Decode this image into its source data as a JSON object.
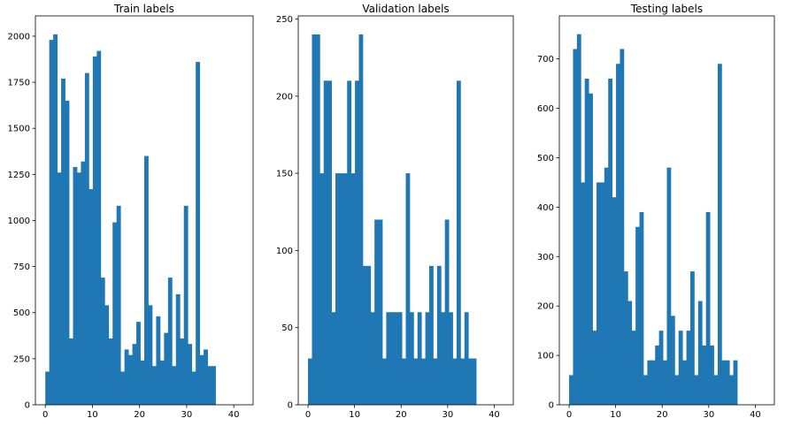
{
  "chart_data": [
    {
      "type": "bar",
      "title": "Train labels",
      "xlabel": "",
      "ylabel": "",
      "xlim": [
        -2.1,
        44.1
      ],
      "ylim": [
        0,
        2110
      ],
      "xticks": [
        0,
        10,
        20,
        30,
        40
      ],
      "yticks": [
        0,
        250,
        500,
        750,
        1000,
        1250,
        1500,
        1750,
        2000
      ],
      "bin_edges_start": 0,
      "bin_width": 0.84,
      "values": [
        180,
        1980,
        2010,
        1260,
        1770,
        1650,
        360,
        1290,
        1260,
        1320,
        1800,
        1170,
        1890,
        1920,
        690,
        540,
        360,
        990,
        1080,
        180,
        300,
        270,
        330,
        450,
        240,
        1350,
        540,
        210,
        480,
        240,
        390,
        690,
        210,
        600,
        360,
        1080,
        330,
        180,
        1860,
        270,
        300,
        210,
        210
      ],
      "color": "#1f77b4",
      "grid": false
    },
    {
      "type": "bar",
      "title": "Validation labels",
      "xlabel": "",
      "ylabel": "",
      "xlim": [
        -2.1,
        44.1
      ],
      "ylim": [
        0,
        252
      ],
      "xticks": [
        0,
        10,
        20,
        30,
        40
      ],
      "yticks": [
        0,
        50,
        100,
        150,
        200,
        250
      ],
      "bin_edges_start": 0,
      "bin_width": 0.84,
      "values": [
        30,
        240,
        240,
        150,
        210,
        210,
        60,
        150,
        150,
        150,
        210,
        150,
        210,
        240,
        90,
        90,
        60,
        120,
        120,
        30,
        60,
        60,
        60,
        60,
        30,
        150,
        60,
        30,
        60,
        30,
        60,
        90,
        30,
        90,
        60,
        120,
        60,
        30,
        210,
        30,
        60,
        30,
        30
      ],
      "color": "#1f77b4",
      "grid": false
    },
    {
      "type": "bar",
      "title": "Testing labels",
      "xlabel": "",
      "ylabel": "",
      "xlim": [
        -2.1,
        44.1
      ],
      "ylim": [
        0,
        787
      ],
      "xticks": [
        0,
        10,
        20,
        30,
        40
      ],
      "yticks": [
        0,
        100,
        200,
        300,
        400,
        500,
        600,
        700
      ],
      "bin_edges_start": 0,
      "bin_width": 0.84,
      "values": [
        60,
        720,
        750,
        450,
        660,
        630,
        150,
        450,
        450,
        480,
        660,
        420,
        690,
        720,
        270,
        210,
        150,
        360,
        390,
        60,
        90,
        90,
        120,
        150,
        90,
        480,
        180,
        60,
        150,
        90,
        150,
        270,
        60,
        210,
        120,
        390,
        120,
        60,
        690,
        90,
        90,
        60,
        90
      ],
      "color": "#1f77b4",
      "grid": false
    }
  ]
}
